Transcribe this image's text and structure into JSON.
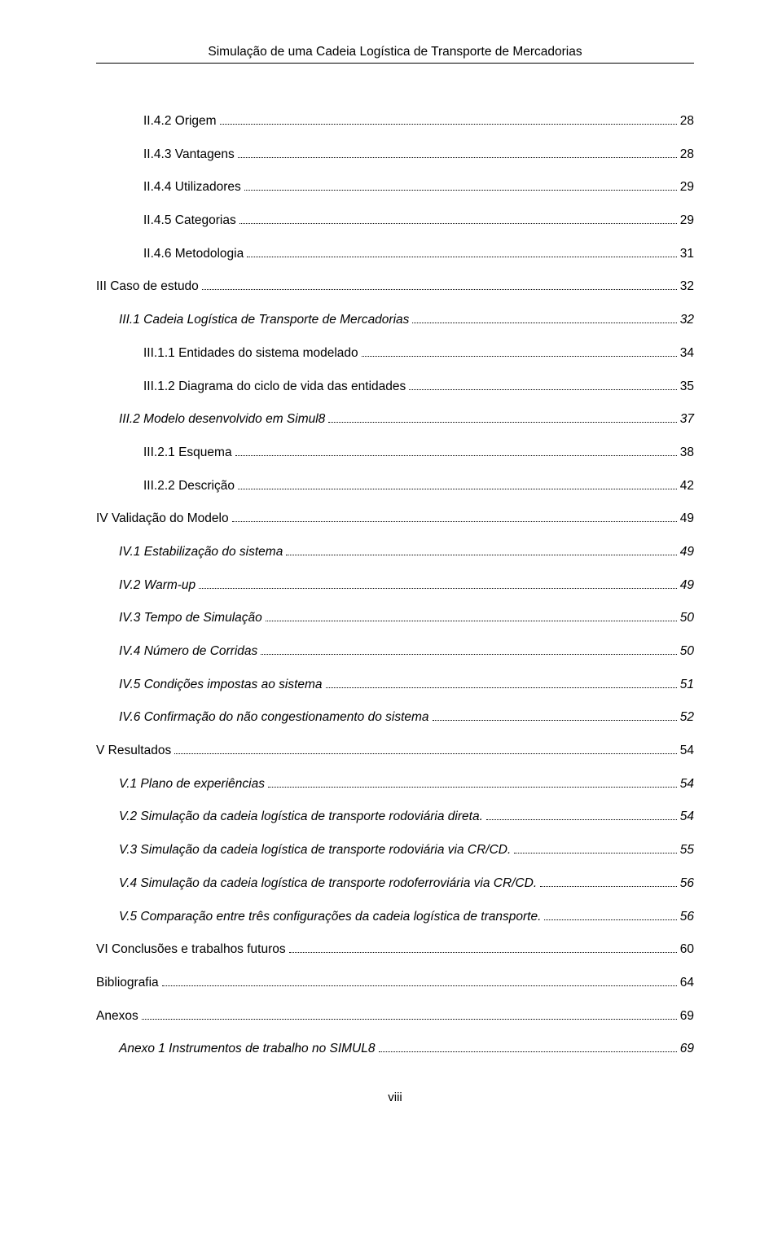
{
  "doc_title": "Simulação de uma Cadeia Logística de Transporte de Mercadorias",
  "footer_page": "viii",
  "toc": [
    {
      "label": "II.4.2 Origem",
      "page": "28",
      "indent": 2,
      "italic": false
    },
    {
      "label": "II.4.3 Vantagens",
      "page": "28",
      "indent": 2,
      "italic": false
    },
    {
      "label": "II.4.4 Utilizadores",
      "page": "29",
      "indent": 2,
      "italic": false
    },
    {
      "label": "II.4.5 Categorias",
      "page": "29",
      "indent": 2,
      "italic": false
    },
    {
      "label": "II.4.6 Metodologia",
      "page": "31",
      "indent": 2,
      "italic": false
    },
    {
      "label": "III Caso de estudo",
      "page": "32",
      "indent": 0,
      "italic": false
    },
    {
      "label": "III.1 Cadeia Logística de Transporte de Mercadorias",
      "page": "32",
      "indent": 1,
      "italic": true
    },
    {
      "label": "III.1.1 Entidades do sistema modelado",
      "page": "34",
      "indent": 2,
      "italic": false
    },
    {
      "label": "III.1.2 Diagrama do ciclo de vida das entidades",
      "page": "35",
      "indent": 2,
      "italic": false
    },
    {
      "label": "III.2 Modelo desenvolvido em Simul8",
      "page": "37",
      "indent": 1,
      "italic": true
    },
    {
      "label": "III.2.1 Esquema",
      "page": "38",
      "indent": 2,
      "italic": false
    },
    {
      "label": "III.2.2 Descrição",
      "page": "42",
      "indent": 2,
      "italic": false
    },
    {
      "label": "IV Validação do Modelo",
      "page": "49",
      "indent": 0,
      "italic": false
    },
    {
      "label": "IV.1 Estabilização do sistema",
      "page": "49",
      "indent": 1,
      "italic": true
    },
    {
      "label": "IV.2 Warm-up",
      "page": "49",
      "indent": 1,
      "italic": true
    },
    {
      "label": "IV.3 Tempo de Simulação",
      "page": "50",
      "indent": 1,
      "italic": true
    },
    {
      "label": "IV.4 Número de Corridas",
      "page": "50",
      "indent": 1,
      "italic": true
    },
    {
      "label": "IV.5 Condições impostas ao sistema",
      "page": "51",
      "indent": 1,
      "italic": true
    },
    {
      "label": "IV.6 Confirmação do não congestionamento do sistema",
      "page": "52",
      "indent": 1,
      "italic": true
    },
    {
      "label": "V Resultados",
      "page": "54",
      "indent": 0,
      "italic": false
    },
    {
      "label": "V.1 Plano de experiências",
      "page": "54",
      "indent": 1,
      "italic": true
    },
    {
      "label": "V.2 Simulação da cadeia logística de transporte rodoviária direta.",
      "page": "54",
      "indent": 1,
      "italic": true
    },
    {
      "label": "V.3 Simulação da cadeia logística de transporte rodoviária via CR/CD.",
      "page": "55",
      "indent": 1,
      "italic": true
    },
    {
      "label": "V.4 Simulação da cadeia logística de transporte rodoferroviária via CR/CD.",
      "page": "56",
      "indent": 1,
      "italic": true
    },
    {
      "label": "V.5 Comparação entre três configurações da cadeia logística de transporte.",
      "page": "56",
      "indent": 1,
      "italic": true
    },
    {
      "label": "VI Conclusões e trabalhos futuros",
      "page": "60",
      "indent": 0,
      "italic": false
    },
    {
      "label": "Bibliografia",
      "page": "64",
      "indent": 0,
      "italic": false
    },
    {
      "label": "Anexos",
      "page": "69",
      "indent": 0,
      "italic": false
    },
    {
      "label": "Anexo 1 Instrumentos de trabalho no SIMUL8",
      "page": "69",
      "indent": 1,
      "italic": true
    }
  ]
}
